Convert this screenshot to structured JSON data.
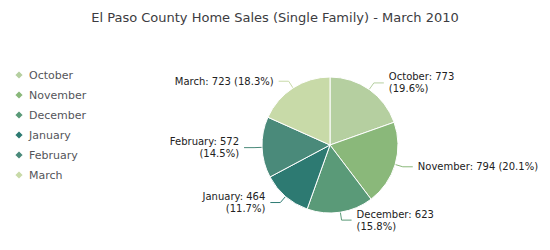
{
  "chart_data": {
    "type": "pie",
    "title": "El Paso County Home Sales (Single Family) - March 2010",
    "categories": [
      "October",
      "November",
      "December",
      "January",
      "February",
      "March"
    ],
    "values": [
      773,
      794,
      623,
      464,
      572,
      723
    ],
    "value_labels": [
      "October: 773\n(19.6%)",
      "November: 794 (20.1%)",
      "December: 623\n(15.8%)",
      "January: 464\n(11.7%)",
      "February: 572\n(14.5%)",
      "March: 723 (18.3%)"
    ],
    "colors": [
      "#b5cfa0",
      "#8ab87a",
      "#5a9a78",
      "#2d7a72",
      "#4a8a7a",
      "#c8daa8"
    ],
    "legend": "left"
  }
}
